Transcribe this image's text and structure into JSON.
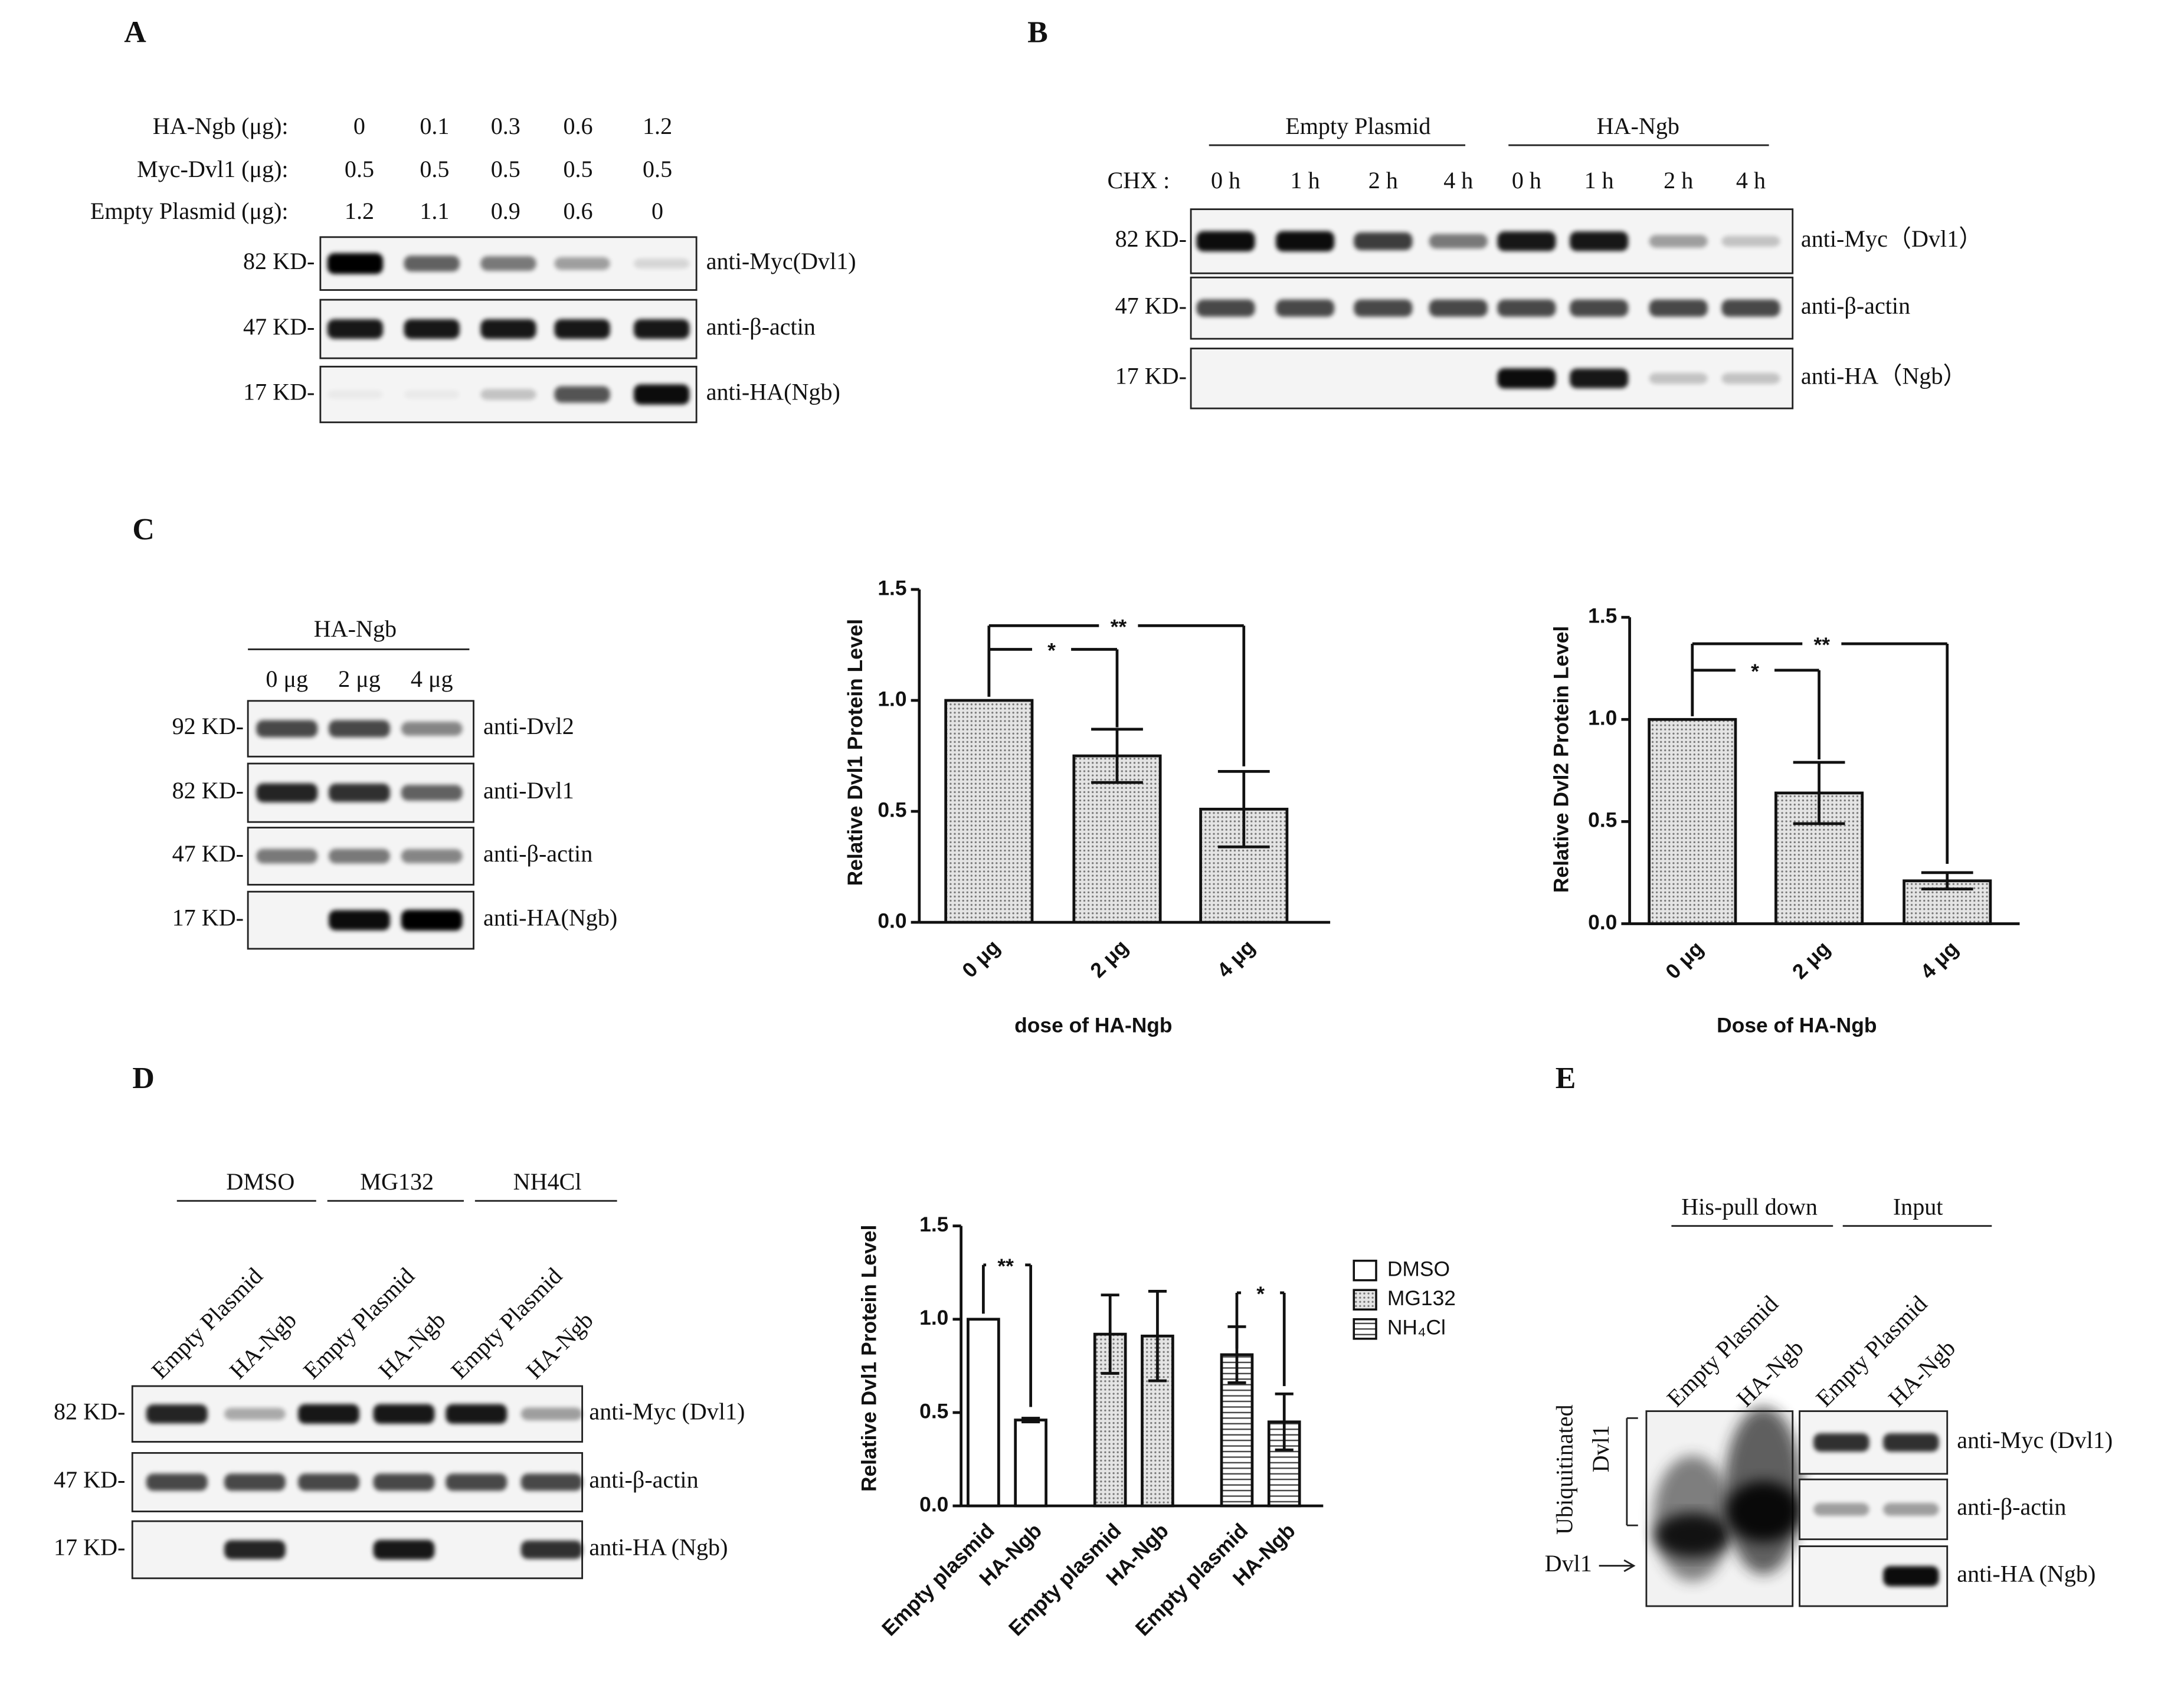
{
  "panels": {
    "A": {
      "label": "A",
      "rows": [
        {
          "name": "HA-Ngb (μg):",
          "values": [
            0,
            0.1,
            0.3,
            0.6,
            1.2
          ]
        },
        {
          "name": "Myc-Dvl1 (μg):",
          "values": [
            0.5,
            0.5,
            0.5,
            0.5,
            0.5
          ]
        },
        {
          "name": "Empty Plasmid (μg):",
          "values": [
            1.2,
            1.1,
            0.9,
            0.6,
            0
          ]
        }
      ],
      "blots": [
        {
          "size": "82 KD-",
          "antibody": "anti-Myc(Dvl1)"
        },
        {
          "size": "47 KD-",
          "antibody": "anti-β-actin"
        },
        {
          "size": "17 KD-",
          "antibody": "anti-HA(Ngb)"
        }
      ]
    },
    "B": {
      "label": "B",
      "groups": [
        "Empty Plasmid",
        "HA-Ngb"
      ],
      "treatment": "CHX :",
      "lanes": [
        "0 h",
        "1 h",
        "2 h",
        "4 h",
        "0 h",
        "1 h",
        "2 h",
        "4 h"
      ],
      "blots": [
        {
          "size": "82 KD-",
          "antibody": "anti-Myc（Dvl1）"
        },
        {
          "size": "47 KD-",
          "antibody": "anti-β-actin"
        },
        {
          "size": "17 KD-",
          "antibody": "anti-HA（Ngb）"
        }
      ]
    },
    "C": {
      "label": "C",
      "groups": [
        "HA-Ngb"
      ],
      "lanes": [
        "0 μg",
        "2 μg",
        "4 μg"
      ],
      "blots": [
        {
          "size": "92 KD-",
          "antibody": "anti-Dvl2"
        },
        {
          "size": "82 KD-",
          "antibody": "anti-Dvl1"
        },
        {
          "size": "47 KD-",
          "antibody": "anti-β-actin"
        },
        {
          "size": "17 KD-",
          "antibody": "anti-HA(Ngb)"
        }
      ]
    },
    "D": {
      "label": "D",
      "groups": [
        "DMSO",
        "MG132",
        "NH4Cl"
      ],
      "lanes": [
        "Empty Plasmid",
        "HA-Ngb",
        "Empty Plasmid",
        "HA-Ngb",
        "Empty Plasmid",
        "HA-Ngb"
      ],
      "blots": [
        {
          "size": "82 KD-",
          "antibody": "anti-Myc (Dvl1)"
        },
        {
          "size": "47 KD-",
          "antibody": "anti-β-actin"
        },
        {
          "size": "17 KD-",
          "antibody": "anti-HA (Ngb)"
        }
      ]
    },
    "E": {
      "label": "E",
      "groups": [
        "His-pull  down",
        "Input"
      ],
      "lanes": [
        "Empty Plasmid",
        "HA-Ngb",
        "Empty Plasmid",
        "HA-Ngb"
      ],
      "side_labels": [
        "Ubiquitinated",
        "Dvl1",
        "Dvl1"
      ],
      "blots": [
        {
          "antibody": "anti-Myc (Dvl1)"
        },
        {
          "antibody": "anti-β-actin"
        },
        {
          "antibody": "anti-HA (Ngb)"
        }
      ]
    }
  },
  "chart_data": [
    {
      "type": "bar",
      "ylabel": "Relative Dvl1 Protein Level",
      "xlabel": "dose of HA-Ngb",
      "categories": [
        "0 μg",
        "2 μg",
        "4 μg"
      ],
      "values": [
        1.0,
        0.75,
        0.51
      ],
      "errors": [
        null,
        0.12,
        0.17
      ],
      "pattern": "dots",
      "ylim": [
        0,
        1.5
      ],
      "yticks": [
        {
          "value": 0,
          "label": "0.0"
        },
        0.5,
        {
          "value": 1,
          "label": "1.0"
        },
        1.5
      ],
      "annotations": [
        "*",
        "**"
      ]
    },
    {
      "type": "bar",
      "ylabel": "Relative Dvl2 Protein Level",
      "xlabel": "Dose of HA-Ngb",
      "categories": [
        "0 μg",
        "2 μg",
        "4 μg"
      ],
      "values": [
        1.0,
        0.64,
        0.21
      ],
      "errors": [
        null,
        0.15,
        0.04
      ],
      "pattern": "dots",
      "ylim": [
        0,
        1.5
      ],
      "yticks": [
        {
          "value": 0,
          "label": "0.0"
        },
        0.5,
        {
          "value": 1,
          "label": "1.0"
        },
        1.5
      ],
      "annotations": [
        "*",
        "**"
      ]
    },
    {
      "type": "bar",
      "ylabel": "Relative Dvl1 Protein Level",
      "categories": [
        "Empty plasmid",
        "HA-Ngb",
        "Empty plasmid",
        "HA-Ngb",
        "Empty plasmid",
        "HA-Ngb"
      ],
      "series": [
        {
          "name": "DMSO",
          "pattern": "none",
          "values": [
            1.0,
            0.46,
            null,
            null,
            null,
            null
          ],
          "errors": [
            null,
            0.01,
            null,
            null,
            null,
            null
          ]
        },
        {
          "name": "MG132",
          "pattern": "dots",
          "values": [
            null,
            null,
            0.92,
            0.91,
            null,
            null
          ],
          "errors": [
            null,
            null,
            0.21,
            0.24,
            null,
            null
          ]
        },
        {
          "name": "NH₄Cl",
          "pattern": "hlines",
          "values": [
            null,
            null,
            null,
            null,
            0.81,
            0.45
          ],
          "errors": [
            null,
            null,
            null,
            null,
            0.15,
            0.15
          ]
        }
      ],
      "ylim": [
        0,
        1.5
      ],
      "yticks": [
        {
          "value": 0,
          "label": "0.0"
        },
        0.5,
        {
          "value": 1,
          "label": "1.0"
        },
        1.5
      ],
      "annotations": [
        "**",
        "*"
      ],
      "legend": "right"
    }
  ]
}
